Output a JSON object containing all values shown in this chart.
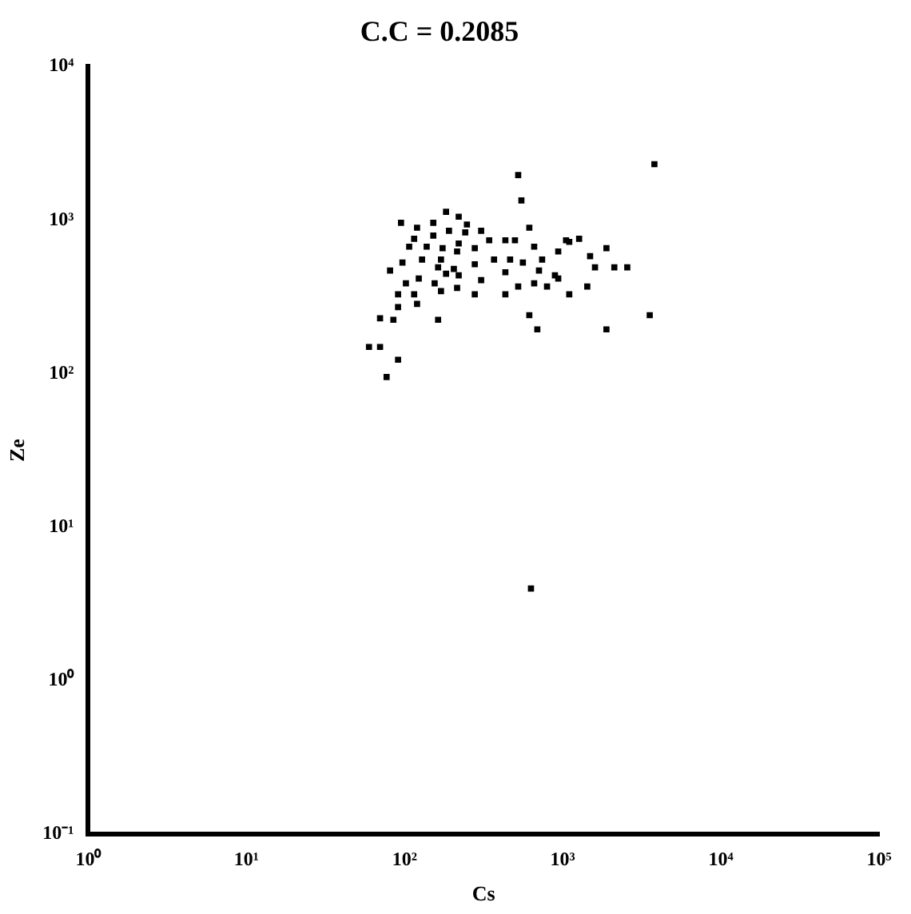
{
  "chart_data": {
    "type": "scatter",
    "title": "C.C = 0.2085",
    "xlabel": "Cs",
    "ylabel": "Ze",
    "log": "xy",
    "grid": false,
    "legend": false,
    "marker": "square",
    "xlim": [
      1,
      100000
    ],
    "xticks": [
      {
        "value": 1,
        "label": "10⁰"
      },
      {
        "value": 10,
        "label": "10¹"
      },
      {
        "value": 100,
        "label": "10²"
      },
      {
        "value": 1000,
        "label": "10³"
      },
      {
        "value": 10000,
        "label": "10⁴"
      },
      {
        "value": 100000,
        "label": "10⁵"
      }
    ],
    "ylim": [
      0.1,
      10000
    ],
    "yticks": [
      {
        "value": 0.1,
        "label": "10⁻¹"
      },
      {
        "value": 1,
        "label": "10⁰"
      },
      {
        "value": 10,
        "label": "10¹"
      },
      {
        "value": 100,
        "label": "10²"
      },
      {
        "value": 1000,
        "label": "10³"
      },
      {
        "value": 10000,
        "label": "10⁴"
      }
    ],
    "x": [
      3800,
      523,
      548,
      3550,
      1890,
      615,
      691,
      77,
      91,
      59.6,
      70,
      70,
      85,
      163,
      91,
      120,
      91,
      115,
      170,
      215,
      278,
      434,
      523,
      660,
      796,
      1100,
      1430,
      937,
      102,
      123,
      155,
      183,
      220,
      305,
      434,
      708,
      893,
      1600,
      2120,
      2560,
      1490,
      1890,
      97,
      129,
      170,
      205,
      278,
      368,
      465,
      560,
      741,
      937,
      1270,
      1050,
      660,
      107,
      138,
      174,
      220,
      278,
      343,
      434,
      499,
      615,
      115,
      152,
      191,
      242,
      305,
      95,
      120,
      152,
      183,
      220,
      248,
      215,
      163,
      81,
      1100,
      630
    ],
    "series": [
      {
        "color": "#000000",
        "values": [
          2310,
          1960,
          1340,
          240,
          194,
          240,
          194,
          95,
          123,
          149,
          149,
          229,
          224,
          224,
          271,
          284,
          328,
          328,
          344,
          361,
          328,
          328,
          369,
          387,
          369,
          328,
          369,
          416,
          387,
          416,
          387,
          447,
          436,
          406,
          457,
          469,
          436,
          492,
          492,
          492,
          581,
          655,
          528,
          553,
          553,
          480,
          515,
          553,
          553,
          528,
          553,
          624,
          755,
          738,
          670,
          670,
          670,
          655,
          703,
          655,
          738,
          738,
          738,
          891,
          755,
          792,
          851,
          830,
          851,
          958,
          891,
          958,
          1130,
          1050,
          935,
          624,
          492,
          469,
          720,
          3.98
        ]
      }
    ]
  }
}
